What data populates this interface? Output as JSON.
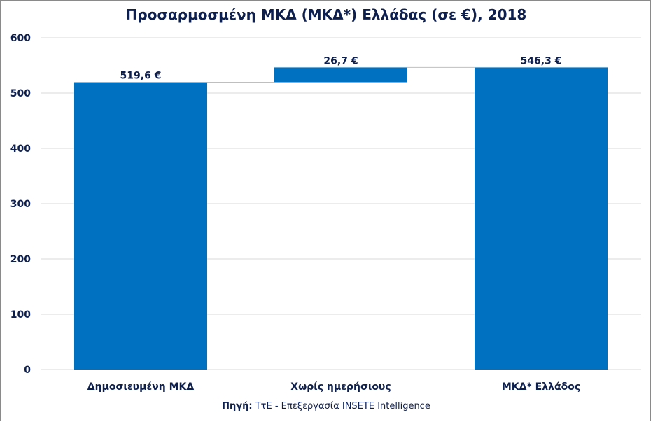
{
  "title": "Προσαρμοσμένη ΜΚΔ (ΜΚΔ*) Ελλάδας (σε €), 2018",
  "source": {
    "prefix": "Πηγή:",
    "text": " ΤτΕ - Επεξεργασία INSETE Intelligence"
  },
  "colors": {
    "bar": "#0070c0",
    "text": "#0d1f4f",
    "grid": "#d9d9d9"
  },
  "chart_data": {
    "type": "bar",
    "subtype": "waterfall",
    "categories": [
      "Δημοσιευμένη ΜΚΔ",
      "Χωρίς ημερήσιους",
      "ΜΚΔ* Ελλάδος"
    ],
    "values": [
      519.6,
      26.7,
      546.3
    ],
    "bases": [
      0,
      519.6,
      0
    ],
    "data_labels": [
      "519,6 €",
      "26,7 €",
      "546,3 €"
    ],
    "yticks": [
      "0",
      "100",
      "200",
      "300",
      "400",
      "500",
      "600"
    ],
    "ylim": [
      0,
      600
    ],
    "grid": true,
    "legend": "none"
  }
}
